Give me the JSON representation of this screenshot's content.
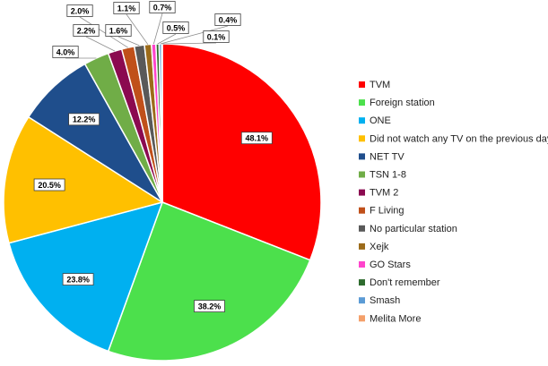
{
  "chart_data": {
    "type": "pie",
    "title": "",
    "legend_placement": "right",
    "categories": [
      "TVM",
      "Foreign station",
      "ONE",
      "Did not watch any TV on the previous day",
      "NET TV",
      "TSN 1-8",
      "TVM 2",
      "F Living",
      "No particular station",
      "Xejk",
      "GO Stars",
      "Don't remember",
      "Smash",
      "Melita More"
    ],
    "values": [
      48.1,
      38.2,
      23.8,
      20.5,
      12.2,
      4.0,
      2.2,
      2.0,
      1.6,
      1.1,
      0.7,
      0.5,
      0.4,
      0.1
    ],
    "value_labels": [
      "48.1%",
      "38.2%",
      "23.8%",
      "20.5%",
      "12.2%",
      "4.0%",
      "2.2%",
      "2.0%",
      "1.6%",
      "1.1%",
      "0.7%",
      "0.5%",
      "0.4%",
      "0.1%"
    ],
    "colors": [
      "#FF0000",
      "#4CE04C",
      "#00B0F0",
      "#FFC000",
      "#1F4E8C",
      "#70AD47",
      "#8B0A50",
      "#C0501A",
      "#595959",
      "#9C6B1A",
      "#FF44CC",
      "#2E6B2E",
      "#5B9BD5",
      "#F4A06A"
    ]
  }
}
